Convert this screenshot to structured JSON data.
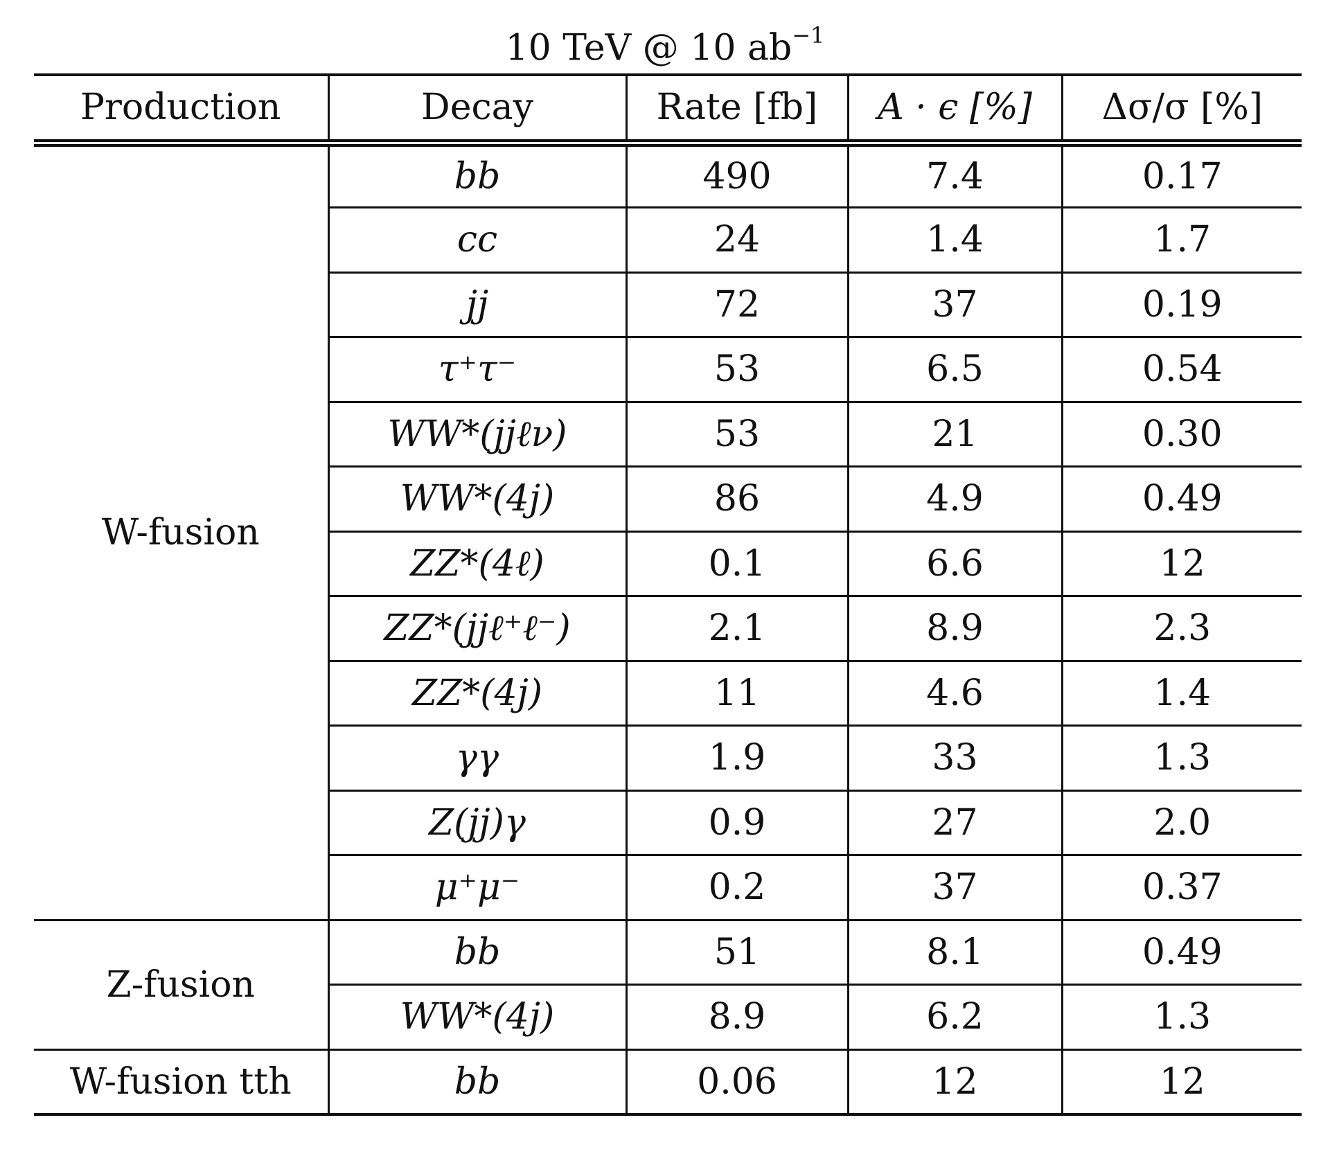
{
  "caption": {
    "main": "10 TeV @ 10 ab",
    "superscript": "−1"
  },
  "headers": {
    "production": "Production",
    "decay": "Decay",
    "rate": "Rate [fb]",
    "acceptance": "A · ϵ [%]",
    "uncertainty": "Δσ/σ [%]"
  },
  "groups": [
    {
      "production": "W-fusion",
      "rows": [
        {
          "decay": "bb",
          "rate": "490",
          "acceptance": "7.4",
          "uncertainty": "0.17"
        },
        {
          "decay": "cc",
          "rate": "24",
          "acceptance": "1.4",
          "uncertainty": "1.7"
        },
        {
          "decay": "jj",
          "rate": "72",
          "acceptance": "37",
          "uncertainty": "0.19"
        },
        {
          "decay": "τ⁺τ⁻",
          "rate": "53",
          "acceptance": "6.5",
          "uncertainty": "0.54"
        },
        {
          "decay": "WW*(jjℓν)",
          "rate": "53",
          "acceptance": "21",
          "uncertainty": "0.30"
        },
        {
          "decay": "WW*(4j)",
          "rate": "86",
          "acceptance": "4.9",
          "uncertainty": "0.49"
        },
        {
          "decay": "ZZ*(4ℓ)",
          "rate": "0.1",
          "acceptance": "6.6",
          "uncertainty": "12"
        },
        {
          "decay": "ZZ*(jjℓ⁺ℓ⁻)",
          "rate": "2.1",
          "acceptance": "8.9",
          "uncertainty": "2.3"
        },
        {
          "decay": "ZZ*(4j)",
          "rate": "11",
          "acceptance": "4.6",
          "uncertainty": "1.4"
        },
        {
          "decay": "γγ",
          "rate": "1.9",
          "acceptance": "33",
          "uncertainty": "1.3"
        },
        {
          "decay": "Z(jj)γ",
          "rate": "0.9",
          "acceptance": "27",
          "uncertainty": "2.0"
        },
        {
          "decay": "μ⁺μ⁻",
          "rate": "0.2",
          "acceptance": "37",
          "uncertainty": "0.37"
        }
      ]
    },
    {
      "production": "Z-fusion",
      "rows": [
        {
          "decay": "bb",
          "rate": "51",
          "acceptance": "8.1",
          "uncertainty": "0.49"
        },
        {
          "decay": "WW*(4j)",
          "rate": "8.9",
          "acceptance": "6.2",
          "uncertainty": "1.3"
        }
      ]
    },
    {
      "production": "W-fusion tth",
      "rows": [
        {
          "decay": "bb",
          "rate": "0.06",
          "acceptance": "12",
          "uncertainty": "12"
        }
      ]
    }
  ]
}
